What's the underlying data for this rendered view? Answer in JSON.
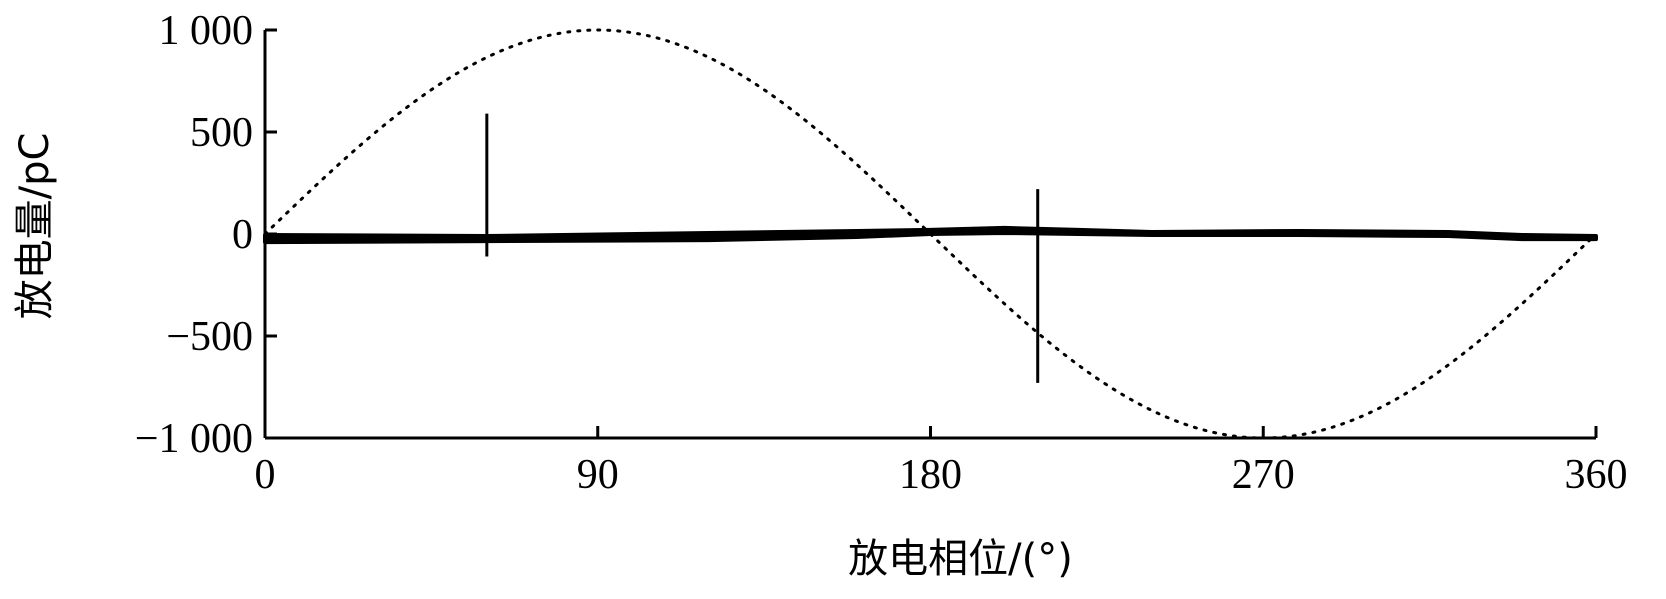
{
  "chart_data": {
    "type": "line",
    "title": "",
    "xlabel": "放电相位/(°)",
    "ylabel": "放电量/pC",
    "xlim": [
      0,
      360
    ],
    "ylim": [
      -1000,
      1000
    ],
    "x_ticks": [
      0,
      90,
      180,
      270,
      360
    ],
    "x_tick_labels": [
      "0",
      "90",
      "180",
      "270",
      "360"
    ],
    "y_ticks": [
      1000,
      500,
      0,
      -500,
      -1000
    ],
    "y_tick_labels": [
      "1 000",
      "500",
      "0",
      "−500",
      "−1 000"
    ],
    "grid": false,
    "legend": "none",
    "series": [
      {
        "style": "dotted",
        "color": "#000000",
        "function": "sine",
        "amplitude": 1000,
        "period_deg": 360
      },
      {
        "style": "solid-band",
        "color": "#000000",
        "x": [
          0,
          60,
          120,
          160,
          180,
          200,
          220,
          240,
          280,
          320,
          340,
          360
        ],
        "y_low": [
          -40,
          -35,
          -30,
          -15,
          0,
          5,
          0,
          -5,
          -5,
          -10,
          -25,
          -25
        ],
        "y_high": [
          -5,
          -10,
          5,
          15,
          20,
          30,
          20,
          10,
          15,
          10,
          -5,
          -10
        ]
      },
      {
        "style": "spikes",
        "color": "#000000",
        "x": [
          60,
          209
        ],
        "y_high": [
          590,
          220
        ],
        "y_low": [
          -110,
          -730
        ]
      }
    ]
  }
}
